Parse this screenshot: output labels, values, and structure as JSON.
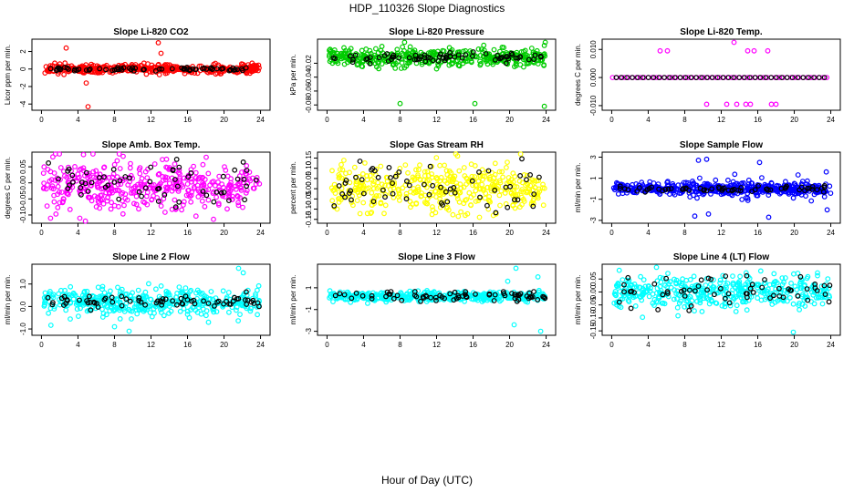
{
  "figure": {
    "title": "HDP_110326  Slope Diagnostics",
    "xlabel": "Hour of Day (UTC)"
  },
  "colors": {
    "black": "#000000",
    "red": "#ff0000",
    "green": "#00cc00",
    "magenta": "#ff00ff",
    "yellow": "#ffff00",
    "blue": "#0000ff",
    "cyan": "#00ffff"
  },
  "chart_data": [
    {
      "type": "scatter",
      "title": "Slope Li-820 CO2",
      "ylabel": "Licor ppm per min.",
      "xlim": [
        0,
        24
      ],
      "xticks": [
        0,
        4,
        8,
        12,
        16,
        20,
        24
      ],
      "xtick_labels": [
        "0",
        "4",
        "8",
        "12",
        "16",
        "20",
        "24"
      ],
      "ylim": [
        -4.5,
        3.2
      ],
      "yticks": [
        -4,
        -2,
        0,
        2
      ],
      "ytick_labels": [
        "-4",
        "-2",
        "0",
        "2"
      ],
      "color": "red",
      "center": 0,
      "spread": 0.25,
      "n": 420,
      "n_black": 70,
      "black_spread": 0.12,
      "outliers": [
        [
          2.7,
          2.4
        ],
        [
          12.8,
          3.0
        ],
        [
          4.9,
          -1.6
        ],
        [
          5.1,
          -4.3
        ],
        [
          13.1,
          1.8
        ]
      ]
    },
    {
      "type": "scatter",
      "title": "Slope Li-820 Pressure",
      "ylabel": "kPa per min.",
      "xlim": [
        0,
        24
      ],
      "xticks": [
        0,
        4,
        8,
        12,
        16,
        20,
        24
      ],
      "xtick_labels": [
        "0",
        "4",
        "8",
        "12",
        "16",
        "20",
        "24"
      ],
      "ylim": [
        -0.085,
        0.012
      ],
      "yticks": [
        -0.08,
        -0.06,
        -0.04,
        -0.02
      ],
      "ytick_labels": [
        "-0.08",
        "-0.06",
        "-0.04",
        "-0.02"
      ],
      "color": "green",
      "center": -0.012,
      "spread": 0.006,
      "n": 420,
      "n_black": 70,
      "black_spread": 0.004,
      "outliers": [
        [
          8.0,
          -0.078
        ],
        [
          16.2,
          -0.078
        ],
        [
          23.9,
          0.01
        ],
        [
          23.8,
          -0.082
        ]
      ]
    },
    {
      "type": "scatter",
      "title": "Slope Li-820 Temp.",
      "ylabel": "degrees C per min.",
      "xlim": [
        0,
        24
      ],
      "xticks": [
        0,
        4,
        8,
        12,
        16,
        20,
        24
      ],
      "xtick_labels": [
        "0",
        "4",
        "8",
        "12",
        "16",
        "20",
        "24"
      ],
      "ylim": [
        -0.011,
        0.013
      ],
      "yticks": [
        -0.01,
        0.0,
        0.01
      ],
      "ytick_labels": [
        "-0.010",
        "0.000",
        "0.010"
      ],
      "color": "magenta",
      "center": 0.0,
      "spread": 0.0,
      "n": 0,
      "n_black": 0,
      "black_spread": 0.0,
      "level_line": {
        "y": 0.0,
        "n": 55,
        "n_black": 40
      },
      "outliers": [
        [
          5.3,
          0.0095
        ],
        [
          6.1,
          0.0095
        ],
        [
          14.9,
          0.0095
        ],
        [
          15.6,
          0.0095
        ],
        [
          17.1,
          0.0095
        ],
        [
          10.4,
          -0.0095
        ],
        [
          12.6,
          -0.0095
        ],
        [
          13.7,
          -0.0095
        ],
        [
          14.7,
          -0.0095
        ],
        [
          17.5,
          -0.0095
        ],
        [
          18.0,
          -0.0095
        ],
        [
          13.4,
          0.0125
        ],
        [
          15.2,
          -0.0095
        ]
      ]
    },
    {
      "type": "scatter",
      "title": "Slope Amb. Box Temp.",
      "ylabel": "degrees C per min.",
      "xlim": [
        0,
        24
      ],
      "xticks": [
        0,
        4,
        8,
        12,
        16,
        20,
        24
      ],
      "xtick_labels": [
        "0",
        "4",
        "8",
        "12",
        "16",
        "20",
        "24"
      ],
      "ylim": [
        -0.12,
        0.09
      ],
      "yticks": [
        -0.1,
        -0.05,
        0.0,
        0.05
      ],
      "ytick_labels": [
        "-0.10",
        "-0.05",
        "0.00",
        "0.05"
      ],
      "color": "magenta",
      "center": -0.01,
      "spread": 0.04,
      "n": 420,
      "n_black": 60,
      "black_spread": 0.035,
      "outliers": [
        [
          4.6,
          0.088
        ],
        [
          1.0,
          -0.11
        ],
        [
          4.2,
          -0.11
        ]
      ]
    },
    {
      "type": "scatter",
      "title": "Slope Gas Stream RH",
      "ylabel": "percent per min.",
      "xlim": [
        0,
        24
      ],
      "xticks": [
        0,
        4,
        8,
        12,
        16,
        20,
        24
      ],
      "xtick_labels": [
        "0",
        "4",
        "8",
        "12",
        "16",
        "20",
        "24"
      ],
      "ylim": [
        -0.16,
        0.17
      ],
      "yticks": [
        -0.15,
        -0.1,
        -0.05,
        0.0,
        0.05,
        0.1,
        0.15
      ],
      "ytick_labels": [
        "-0.15",
        "-0.10",
        "-0.05",
        "0.00",
        "0.05",
        "0.10",
        "0.15"
      ],
      "color": "yellow",
      "center": 0.0,
      "spread": 0.055,
      "n": 420,
      "n_black": 60,
      "black_spread": 0.06,
      "outliers": [
        [
          14.3,
          0.16
        ],
        [
          16.7,
          -0.14
        ]
      ]
    },
    {
      "type": "scatter",
      "title": "Slope Sample Flow",
      "ylabel": "ml/min per min.",
      "xlim": [
        0,
        24
      ],
      "xticks": [
        0,
        4,
        8,
        12,
        16,
        20,
        24
      ],
      "xtick_labels": [
        "0",
        "4",
        "8",
        "12",
        "16",
        "20",
        "24"
      ],
      "ylim": [
        -3.1,
        3.3
      ],
      "yticks": [
        -3,
        -1,
        1,
        3
      ],
      "ytick_labels": [
        "-3",
        "-1",
        "1",
        "3"
      ],
      "color": "blue",
      "center": 0.0,
      "spread": 0.25,
      "n": 420,
      "n_black": 60,
      "black_spread": 0.15,
      "extra_spread": [
        [
          8,
          24,
          0.9,
          80
        ]
      ],
      "outliers": [
        [
          9.5,
          2.7
        ],
        [
          10.4,
          2.8
        ],
        [
          16.2,
          2.5
        ],
        [
          9.1,
          -2.6
        ],
        [
          17.2,
          -2.7
        ],
        [
          23.5,
          1.6
        ],
        [
          23.6,
          -2.0
        ],
        [
          10.6,
          -2.4
        ]
      ]
    },
    {
      "type": "scatter",
      "title": "Slope Line 2 Flow",
      "ylabel": "ml/min per min.",
      "xlim": [
        0,
        24
      ],
      "xticks": [
        0,
        4,
        8,
        12,
        16,
        20,
        24
      ],
      "xtick_labels": [
        "0",
        "4",
        "8",
        "12",
        "16",
        "20",
        "24"
      ],
      "ylim": [
        -1.2,
        1.8
      ],
      "yticks": [
        -1.0,
        0.0,
        1.0
      ],
      "ytick_labels": [
        "-1.0",
        "0.0",
        "1.0"
      ],
      "color": "cyan",
      "center": 0.2,
      "spread": 0.3,
      "n": 420,
      "n_black": 70,
      "black_spread": 0.12,
      "outliers": [
        [
          21.6,
          1.7
        ],
        [
          22.1,
          1.5
        ],
        [
          8.0,
          -0.9
        ],
        [
          9.6,
          -1.1
        ],
        [
          18.3,
          -0.7
        ]
      ]
    },
    {
      "type": "scatter",
      "title": "Slope Line 3 Flow",
      "ylabel": "ml/min per min.",
      "xlim": [
        0,
        24
      ],
      "xticks": [
        0,
        4,
        8,
        12,
        16,
        20,
        24
      ],
      "xtick_labels": [
        "0",
        "4",
        "8",
        "12",
        "16",
        "20",
        "24"
      ],
      "ylim": [
        -3.2,
        3.0
      ],
      "yticks": [
        -3,
        -1,
        1
      ],
      "ytick_labels": [
        "-3",
        "-1",
        "1"
      ],
      "color": "cyan",
      "center": 0.2,
      "spread": 0.2,
      "n": 420,
      "n_black": 70,
      "black_spread": 0.25,
      "outliers": [
        [
          20.7,
          2.8
        ],
        [
          20.5,
          -2.4
        ],
        [
          23.4,
          -3.0
        ],
        [
          23.1,
          2.0
        ],
        [
          19.8,
          1.6
        ]
      ]
    },
    {
      "type": "scatter",
      "title": "Slope Line 4 (LT) Flow",
      "ylabel": "ml/min per min.",
      "xlim": [
        0,
        24
      ],
      "xticks": [
        0,
        4,
        8,
        12,
        16,
        20,
        24
      ],
      "xtick_labels": [
        "0",
        "4",
        "8",
        "12",
        "16",
        "20",
        "24"
      ],
      "ylim": [
        -0.16,
        0.1
      ],
      "yticks": [
        -0.15,
        -0.1,
        -0.05,
        0.0,
        0.05
      ],
      "ytick_labels": [
        "-0.15",
        "-0.10",
        "-0.05",
        "0.00",
        "0.05"
      ],
      "color": "cyan",
      "center": 0.0,
      "spread": 0.03,
      "n": 420,
      "n_black": 60,
      "black_spread": 0.028,
      "outliers": [
        [
          19.9,
          -0.155
        ],
        [
          4.9,
          0.095
        ]
      ]
    }
  ]
}
